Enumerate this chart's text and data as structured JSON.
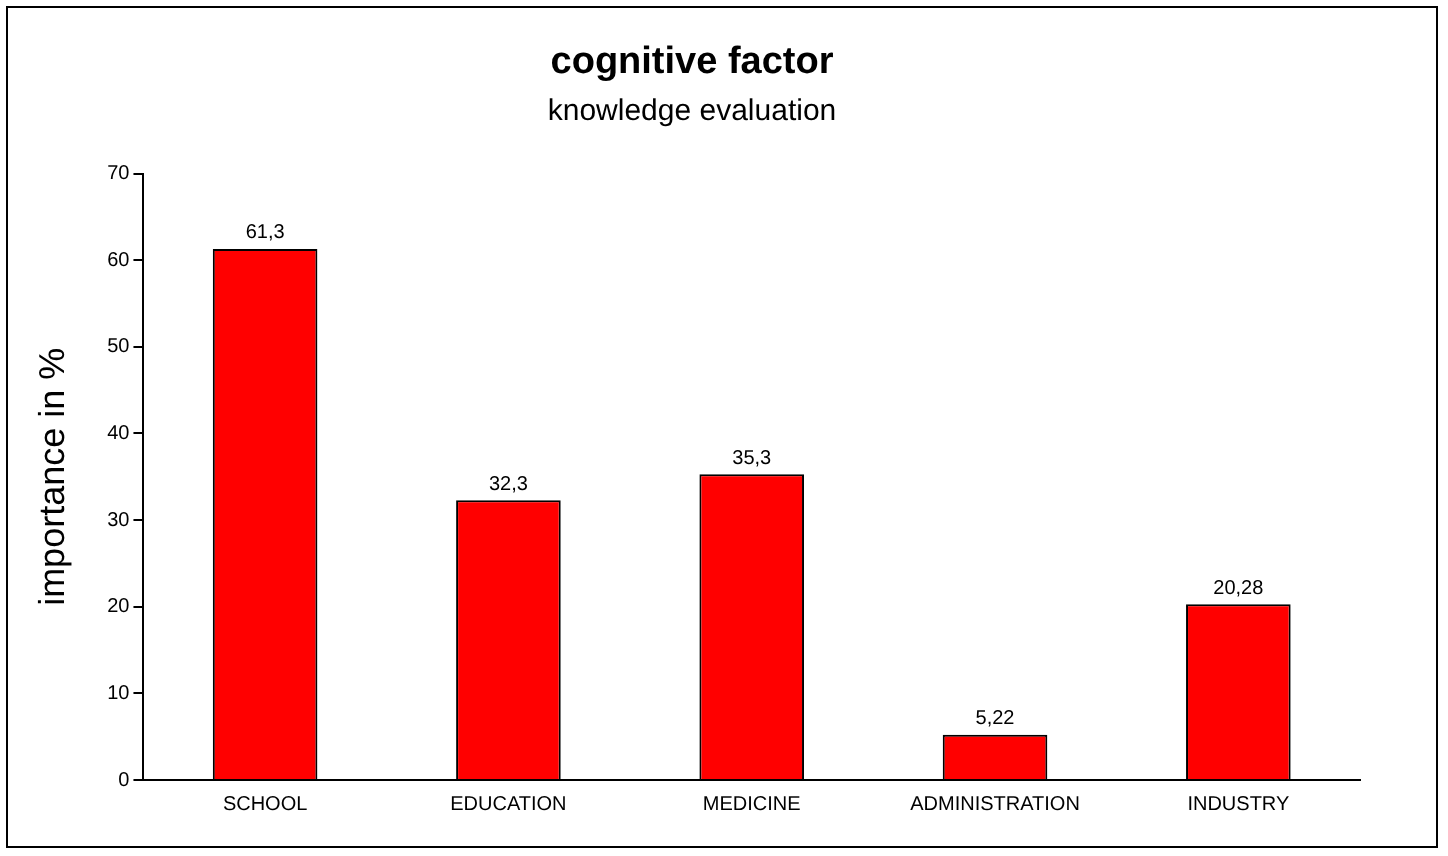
{
  "chart_data": {
    "type": "bar",
    "title": "cognitive factor",
    "subtitle": "knowledge evaluation",
    "ylabel": "importance in %",
    "categories": [
      "SCHOOL",
      "EDUCATION",
      "MEDICINE",
      "ADMINISTRATION",
      "INDUSTRY"
    ],
    "values": [
      61.3,
      32.3,
      35.3,
      5.22,
      20.28
    ],
    "value_labels": [
      "61,3",
      "32,3",
      "35,3",
      "5,22",
      "20,28"
    ],
    "color": "#ff0000",
    "ylim": [
      0,
      70
    ],
    "yticks": [
      0,
      10,
      20,
      30,
      40,
      50,
      60,
      70
    ],
    "grid": false,
    "legend": false
  }
}
